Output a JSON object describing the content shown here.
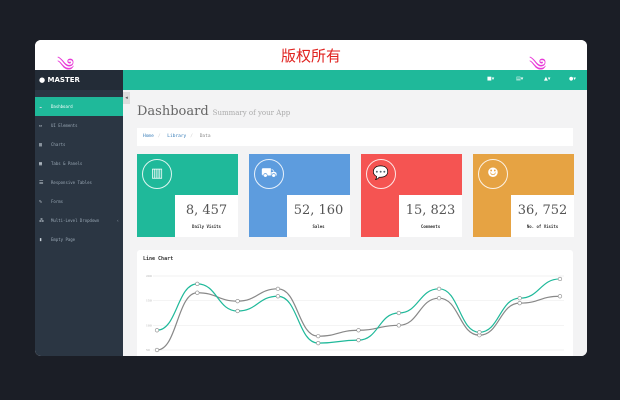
{
  "banner": {
    "title": "版权所有",
    "watermark_icon": "wind-icon"
  },
  "sidebar": {
    "brand": "MASTER",
    "items": [
      {
        "label": "Dashboard",
        "icon": "dashboard-icon",
        "active": true
      },
      {
        "label": "UI Elements",
        "icon": "desktop-icon"
      },
      {
        "label": "Charts",
        "icon": "chart-icon"
      },
      {
        "label": "Tabs & Panels",
        "icon": "qrcode-icon"
      },
      {
        "label": "Responsive Tables",
        "icon": "table-icon"
      },
      {
        "label": "Forms",
        "icon": "edit-icon"
      },
      {
        "label": "Multi-Level Dropdown",
        "icon": "sitemap-icon",
        "arrow": "‹"
      },
      {
        "label": "Empty Page",
        "icon": "file-icon"
      }
    ]
  },
  "topbar": {
    "items": [
      "envelope-icon",
      "tasks-icon",
      "bell-icon",
      "user-icon"
    ]
  },
  "page": {
    "title": "Dashboard",
    "subtitle": "Summary of your App",
    "breadcrumb": [
      "Home",
      "Library",
      "Data"
    ]
  },
  "cards": [
    {
      "value": "8, 457",
      "label": "Daily Visits",
      "color": "#1fb99a",
      "icon": "bar-chart-icon"
    },
    {
      "value": "52, 160",
      "label": "Sales",
      "color": "#5d9cde",
      "icon": "shopping-cart-icon"
    },
    {
      "value": "15, 823",
      "label": "Comments",
      "color": "#f55452",
      "icon": "comments-icon"
    },
    {
      "value": "36, 752",
      "label": "No. of Visits",
      "color": "#e6a343",
      "icon": "users-icon"
    }
  ],
  "chart_data": {
    "type": "line",
    "title": "Line Chart",
    "ylim": [
      50,
      200
    ],
    "yticks": [
      "200",
      "150",
      "100",
      "50"
    ],
    "grid": true,
    "series": [
      {
        "color": "#1fb99a",
        "values": [
          90,
          184,
          129,
          159,
          64,
          70,
          125,
          174,
          86,
          155,
          194
        ]
      },
      {
        "color": "#888888",
        "values": [
          50,
          166,
          149,
          174,
          78,
          90,
          100,
          155,
          80,
          145,
          159
        ]
      }
    ]
  }
}
